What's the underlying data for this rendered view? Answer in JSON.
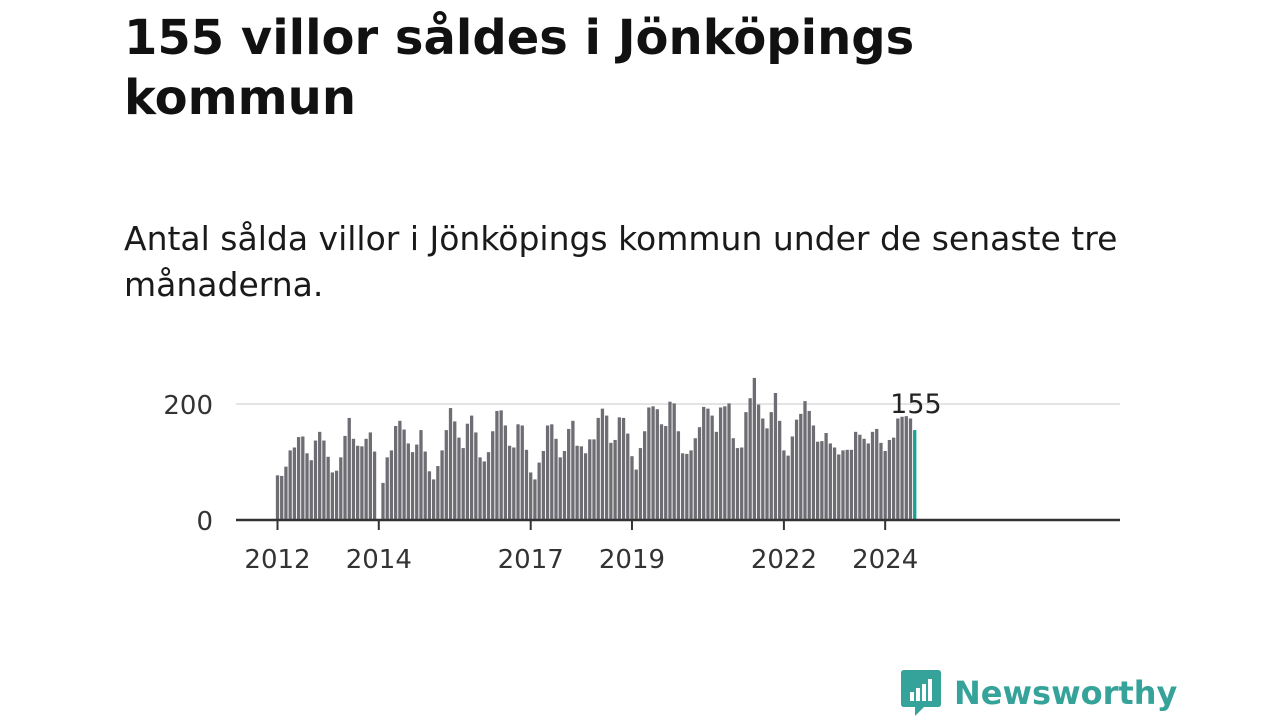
{
  "header": {
    "title": "155 villor såldes i Jönköpings kommun",
    "subtitle": "Antal sålda villor i Jönköpings kommun under de senaste tre månaderna."
  },
  "brand": {
    "name": "Newsworthy",
    "color": "#36a39a",
    "icon": "bar-chart-speech-bubble-icon"
  },
  "colors": {
    "bar": "#6e6d73",
    "highlight": "#16a394",
    "grid": "#dcdcdc",
    "axis": "#333333"
  },
  "chart_data": {
    "type": "bar",
    "title": "155 villor såldes i Jönköpings kommun",
    "subtitle": "Antal sålda villor i Jönköpings kommun under de senaste tre månaderna.",
    "xlabel": "",
    "ylabel": "",
    "ylim": [
      0,
      250
    ],
    "yticks": [
      0,
      200
    ],
    "grid": true,
    "legend": "none",
    "x_tick_labels": [
      "2012",
      "2014",
      "2017",
      "2019",
      "2022",
      "2024"
    ],
    "first_period": "2012-01",
    "highlight_last": true,
    "highlight_label": "155",
    "values": [
      77,
      76,
      92,
      120,
      125,
      143,
      144,
      115,
      103,
      137,
      152,
      137,
      109,
      82,
      85,
      108,
      145,
      176,
      140,
      128,
      127,
      140,
      151,
      118,
      0,
      64,
      108,
      120,
      162,
      171,
      156,
      132,
      117,
      130,
      155,
      118,
      84,
      70,
      93,
      120,
      155,
      193,
      170,
      142,
      124,
      166,
      180,
      151,
      108,
      101,
      117,
      153,
      188,
      189,
      163,
      128,
      125,
      165,
      163,
      121,
      82,
      70,
      99,
      119,
      163,
      165,
      140,
      108,
      119,
      157,
      171,
      128,
      127,
      115,
      139,
      139,
      176,
      192,
      180,
      133,
      138,
      177,
      176,
      149,
      110,
      87,
      124,
      153,
      194,
      196,
      191,
      165,
      162,
      204,
      201,
      153,
      115,
      114,
      120,
      141,
      160,
      195,
      192,
      180,
      152,
      194,
      196,
      201,
      141,
      124,
      125,
      186,
      210,
      245,
      199,
      175,
      158,
      186,
      219,
      171,
      120,
      111,
      144,
      173,
      183,
      205,
      188,
      163,
      135,
      136,
      150,
      132,
      125,
      113,
      120,
      121,
      121,
      152,
      147,
      140,
      132,
      152,
      157,
      133,
      119,
      138,
      142,
      175,
      178,
      179,
      175,
      155
    ]
  }
}
